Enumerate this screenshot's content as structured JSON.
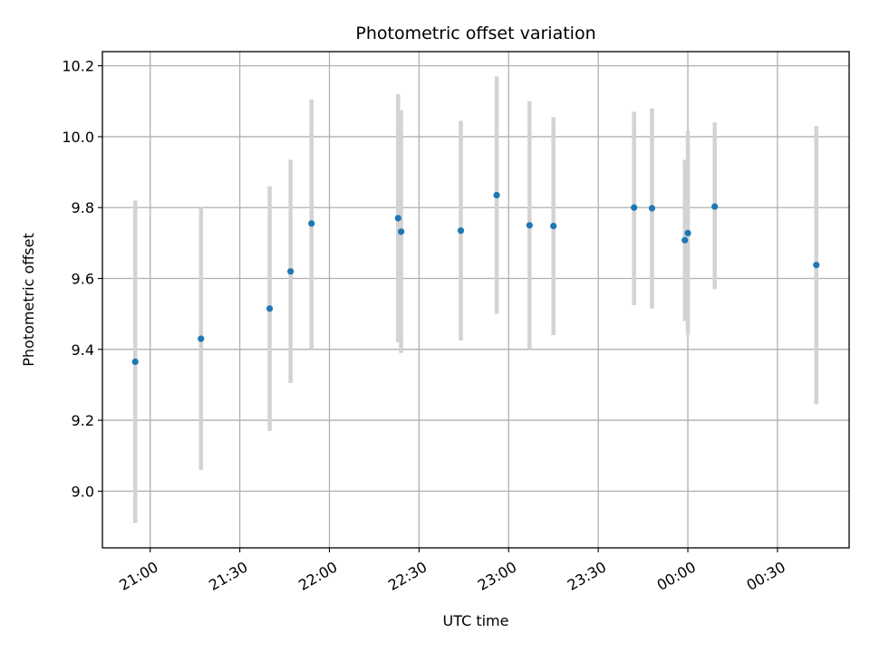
{
  "chart_data": {
    "type": "scatter",
    "title": "Photometric offset variation",
    "xlabel": "UTC time",
    "ylabel": "Photometric offset",
    "x_ticks": [
      "21:00",
      "21:30",
      "22:00",
      "22:30",
      "23:00",
      "23:30",
      "00:00",
      "00:30"
    ],
    "y_ticks": [
      "9.0",
      "9.2",
      "9.4",
      "9.6",
      "9.8",
      "10.0",
      "10.2"
    ],
    "ylim": [
      8.84,
      10.24
    ],
    "xlim": [
      "2000-01-01T20:44",
      "2000-01-02T00:54"
    ],
    "grid": true,
    "colors": {
      "point": "#1f77b4",
      "errorbar": "#d3d3d3",
      "grid": "#b0b0b0"
    },
    "points": [
      {
        "x": "2000-01-01T20:55",
        "y": 9.365,
        "ylow": 8.91,
        "yhigh": 9.82
      },
      {
        "x": "2000-01-01T21:17",
        "y": 9.43,
        "ylow": 9.06,
        "yhigh": 9.8
      },
      {
        "x": "2000-01-01T21:40",
        "y": 9.515,
        "ylow": 9.17,
        "yhigh": 9.86
      },
      {
        "x": "2000-01-01T21:47",
        "y": 9.62,
        "ylow": 9.305,
        "yhigh": 9.935
      },
      {
        "x": "2000-01-01T21:54",
        "y": 9.755,
        "ylow": 9.4,
        "yhigh": 10.105
      },
      {
        "x": "2000-01-01T22:23",
        "y": 9.77,
        "ylow": 9.42,
        "yhigh": 10.12
      },
      {
        "x": "2000-01-01T22:24",
        "y": 9.732,
        "ylow": 9.39,
        "yhigh": 10.075
      },
      {
        "x": "2000-01-01T22:44",
        "y": 9.735,
        "ylow": 9.425,
        "yhigh": 10.045
      },
      {
        "x": "2000-01-01T22:56",
        "y": 9.835,
        "ylow": 9.5,
        "yhigh": 10.17
      },
      {
        "x": "2000-01-01T23:07",
        "y": 9.75,
        "ylow": 9.4,
        "yhigh": 10.1
      },
      {
        "x": "2000-01-01T23:15",
        "y": 9.748,
        "ylow": 9.44,
        "yhigh": 10.055
      },
      {
        "x": "2000-01-01T23:42",
        "y": 9.8,
        "ylow": 9.525,
        "yhigh": 10.07
      },
      {
        "x": "2000-01-01T23:48",
        "y": 9.798,
        "ylow": 9.515,
        "yhigh": 10.08
      },
      {
        "x": "2000-01-01T23:59",
        "y": 9.708,
        "ylow": 9.48,
        "yhigh": 9.935
      },
      {
        "x": "2000-01-02T00:00",
        "y": 9.728,
        "ylow": 9.44,
        "yhigh": 10.015
      },
      {
        "x": "2000-01-02T00:09",
        "y": 9.803,
        "ylow": 9.57,
        "yhigh": 10.04
      },
      {
        "x": "2000-01-02T00:43",
        "y": 9.638,
        "ylow": 9.245,
        "yhigh": 10.03
      }
    ]
  }
}
